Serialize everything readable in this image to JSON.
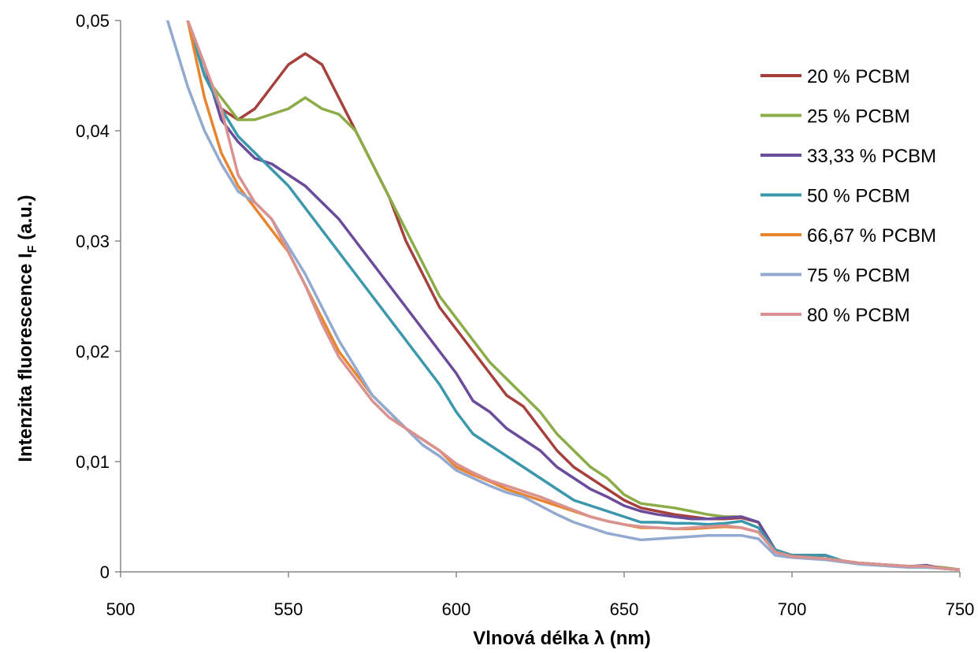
{
  "chart_data": {
    "type": "line",
    "xlabel": "Vlnová délka λ (nm)",
    "ylabel_main": "Intenzita fluorescence I",
    "ylabel_sub": "F",
    "ylabel_tail": " (a.u.)",
    "xlim": [
      500,
      750
    ],
    "ylim": [
      0,
      0.05
    ],
    "x_ticks": [
      500,
      550,
      600,
      650,
      700,
      750
    ],
    "x_tick_labels": [
      "500",
      "550",
      "600",
      "650",
      "700",
      "750"
    ],
    "y_ticks": [
      0,
      0.01,
      0.02,
      0.03,
      0.04,
      0.05
    ],
    "y_tick_labels": [
      "0",
      "0,01",
      "0,02",
      "0,03",
      "0,04",
      "0,05"
    ],
    "grid": false,
    "legend_position": "top-right",
    "series": [
      {
        "name": "20 % PCBM",
        "color": "#a6403d",
        "x": [
          520,
          525,
          530,
          535,
          540,
          545,
          550,
          555,
          560,
          565,
          570,
          575,
          580,
          585,
          590,
          595,
          600,
          605,
          610,
          615,
          620,
          625,
          630,
          635,
          640,
          645,
          650,
          655,
          660,
          665,
          670,
          675,
          680,
          685,
          690,
          695,
          700,
          705,
          710,
          715,
          720,
          725,
          730,
          735,
          740,
          745,
          750
        ],
        "y": [
          0.05,
          0.045,
          0.042,
          0.041,
          0.042,
          0.044,
          0.046,
          0.047,
          0.046,
          0.043,
          0.04,
          0.037,
          0.034,
          0.03,
          0.027,
          0.024,
          0.022,
          0.02,
          0.018,
          0.016,
          0.015,
          0.013,
          0.011,
          0.0095,
          0.0085,
          0.0075,
          0.0065,
          0.0058,
          0.0055,
          0.0052,
          0.005,
          0.0048,
          0.0048,
          0.0049,
          0.0045,
          0.002,
          0.0015,
          0.0015,
          0.0015,
          0.001,
          0.0008,
          0.0007,
          0.0006,
          0.0005,
          0.0005,
          0.0003,
          0.0002
        ]
      },
      {
        "name": "25 % PCBM",
        "color": "#8bac47",
        "x": [
          520,
          525,
          530,
          535,
          540,
          545,
          550,
          555,
          560,
          565,
          570,
          575,
          580,
          585,
          590,
          595,
          600,
          605,
          610,
          615,
          620,
          625,
          630,
          635,
          640,
          645,
          650,
          655,
          660,
          665,
          670,
          675,
          680,
          685,
          690,
          695,
          700,
          705,
          710,
          715,
          720,
          725,
          730,
          735,
          740,
          745,
          750
        ],
        "y": [
          0.05,
          0.045,
          0.043,
          0.041,
          0.041,
          0.0415,
          0.042,
          0.043,
          0.042,
          0.0415,
          0.04,
          0.037,
          0.034,
          0.031,
          0.028,
          0.025,
          0.023,
          0.021,
          0.019,
          0.0175,
          0.016,
          0.0145,
          0.0125,
          0.011,
          0.0095,
          0.0085,
          0.007,
          0.0062,
          0.006,
          0.0058,
          0.0055,
          0.0052,
          0.005,
          0.005,
          0.0045,
          0.002,
          0.0015,
          0.0015,
          0.0015,
          0.001,
          0.0008,
          0.0007,
          0.0006,
          0.0005,
          0.0005,
          0.0004,
          0.0002
        ]
      },
      {
        "name": "33,33 % PCBM",
        "color": "#6b4c9a",
        "x": [
          520,
          525,
          530,
          535,
          540,
          545,
          550,
          555,
          560,
          565,
          570,
          575,
          580,
          585,
          590,
          595,
          600,
          605,
          610,
          615,
          620,
          625,
          630,
          635,
          640,
          645,
          650,
          655,
          660,
          665,
          670,
          675,
          680,
          685,
          690,
          695,
          700,
          705,
          710,
          715,
          720,
          725,
          730,
          735,
          740,
          745,
          750
        ],
        "y": [
          0.05,
          0.046,
          0.041,
          0.039,
          0.0375,
          0.037,
          0.036,
          0.035,
          0.0335,
          0.032,
          0.03,
          0.028,
          0.026,
          0.024,
          0.022,
          0.02,
          0.018,
          0.0155,
          0.0145,
          0.013,
          0.012,
          0.011,
          0.0095,
          0.0085,
          0.0075,
          0.0068,
          0.006,
          0.0055,
          0.0052,
          0.005,
          0.0048,
          0.0048,
          0.0049,
          0.005,
          0.0045,
          0.002,
          0.0015,
          0.0015,
          0.0015,
          0.001,
          0.0008,
          0.0007,
          0.0006,
          0.0005,
          0.0006,
          0.0003,
          0.0002
        ]
      },
      {
        "name": "50 % PCBM",
        "color": "#3b98ac",
        "x": [
          520,
          525,
          530,
          535,
          540,
          545,
          550,
          555,
          560,
          565,
          570,
          575,
          580,
          585,
          590,
          595,
          600,
          605,
          610,
          615,
          620,
          625,
          630,
          635,
          640,
          645,
          650,
          655,
          660,
          665,
          670,
          675,
          680,
          685,
          690,
          695,
          700,
          705,
          710,
          715,
          720,
          725,
          730,
          735,
          740,
          745,
          750
        ],
        "y": [
          0.05,
          0.045,
          0.042,
          0.0395,
          0.038,
          0.0365,
          0.035,
          0.033,
          0.031,
          0.029,
          0.027,
          0.025,
          0.023,
          0.021,
          0.019,
          0.017,
          0.0145,
          0.0125,
          0.0115,
          0.0105,
          0.0095,
          0.0085,
          0.0075,
          0.0065,
          0.006,
          0.0055,
          0.005,
          0.0045,
          0.0045,
          0.0044,
          0.0044,
          0.0043,
          0.0044,
          0.0046,
          0.004,
          0.002,
          0.0015,
          0.0015,
          0.0015,
          0.001,
          0.0008,
          0.0007,
          0.0006,
          0.0005,
          0.0005,
          0.0003,
          0.0002
        ]
      },
      {
        "name": "66,67 % PCBM",
        "color": "#e8852e",
        "x": [
          520,
          525,
          530,
          535,
          540,
          545,
          550,
          555,
          560,
          565,
          570,
          575,
          580,
          585,
          590,
          595,
          600,
          605,
          610,
          615,
          620,
          625,
          630,
          635,
          640,
          645,
          650,
          655,
          660,
          665,
          670,
          675,
          680,
          685,
          690,
          695,
          700,
          705,
          710,
          715,
          720,
          725,
          730,
          735,
          740,
          745,
          750
        ],
        "y": [
          0.05,
          0.043,
          0.038,
          0.035,
          0.033,
          0.031,
          0.029,
          0.026,
          0.023,
          0.02,
          0.018,
          0.016,
          0.0145,
          0.013,
          0.012,
          0.011,
          0.0095,
          0.0088,
          0.0082,
          0.0075,
          0.007,
          0.0065,
          0.006,
          0.0055,
          0.005,
          0.0046,
          0.0043,
          0.004,
          0.004,
          0.0039,
          0.0039,
          0.004,
          0.0041,
          0.004,
          0.0036,
          0.0018,
          0.0014,
          0.0013,
          0.0012,
          0.001,
          0.0008,
          0.0007,
          0.0006,
          0.0005,
          0.0005,
          0.0003,
          0.0002
        ]
      },
      {
        "name": "75 % PCBM",
        "color": "#92a9d0",
        "x": [
          514,
          520,
          525,
          530,
          535,
          540,
          545,
          550,
          555,
          560,
          565,
          570,
          575,
          580,
          585,
          590,
          595,
          600,
          605,
          610,
          615,
          620,
          625,
          630,
          635,
          640,
          645,
          650,
          655,
          660,
          665,
          670,
          675,
          680,
          685,
          690,
          695,
          700,
          705,
          710,
          715,
          720,
          725,
          730,
          735,
          740,
          745,
          750
        ],
        "y": [
          0.05,
          0.044,
          0.04,
          0.037,
          0.0345,
          0.0335,
          0.032,
          0.0295,
          0.027,
          0.024,
          0.021,
          0.0185,
          0.016,
          0.0145,
          0.013,
          0.0115,
          0.0105,
          0.0092,
          0.0085,
          0.0078,
          0.0072,
          0.0068,
          0.006,
          0.0052,
          0.0045,
          0.004,
          0.0035,
          0.0032,
          0.0029,
          0.003,
          0.0031,
          0.0032,
          0.0033,
          0.0033,
          0.0033,
          0.003,
          0.0015,
          0.0013,
          0.0012,
          0.0011,
          0.0009,
          0.0007,
          0.0006,
          0.0005,
          0.0004,
          0.0004,
          0.0003,
          0.0002
        ]
      },
      {
        "name": "80 % PCBM",
        "color": "#d9928f",
        "x": [
          520,
          525,
          530,
          535,
          540,
          545,
          550,
          555,
          560,
          565,
          570,
          575,
          580,
          585,
          590,
          595,
          600,
          605,
          610,
          615,
          620,
          625,
          630,
          635,
          640,
          645,
          650,
          655,
          660,
          665,
          670,
          675,
          680,
          685,
          690,
          695,
          700,
          705,
          710,
          715,
          720,
          725,
          730,
          735,
          740,
          745,
          750
        ],
        "y": [
          0.05,
          0.046,
          0.042,
          0.036,
          0.0335,
          0.032,
          0.029,
          0.026,
          0.0225,
          0.0195,
          0.0175,
          0.0155,
          0.014,
          0.013,
          0.012,
          0.011,
          0.0098,
          0.009,
          0.0083,
          0.0078,
          0.0073,
          0.0068,
          0.0062,
          0.0056,
          0.005,
          0.0046,
          0.0043,
          0.0041,
          0.004,
          0.0039,
          0.004,
          0.0041,
          0.0042,
          0.004,
          0.0036,
          0.0018,
          0.0014,
          0.0013,
          0.0012,
          0.001,
          0.0008,
          0.0007,
          0.0006,
          0.0005,
          0.0005,
          0.0003,
          0.0002
        ]
      }
    ]
  }
}
